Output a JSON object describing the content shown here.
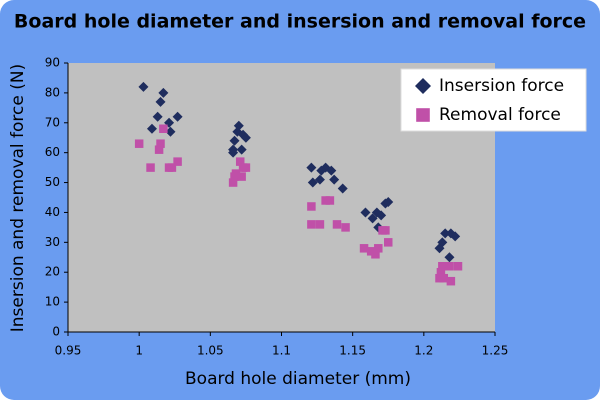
{
  "chart_data": {
    "type": "scatter",
    "title": "Board hole diameter and insersion and removal force",
    "x_label": "Board hole diameter (mm)",
    "y_label": "Insersion and removal force (N)",
    "xlim": [
      0.95,
      1.25
    ],
    "xticks": [
      0.95,
      1,
      1.05,
      1.1,
      1.15,
      1.2,
      1.25
    ],
    "ylim": [
      0,
      90
    ],
    "yticks": [
      0,
      10,
      20,
      30,
      40,
      50,
      60,
      70,
      80,
      90
    ],
    "grid": false,
    "legend": "upper right",
    "series": [
      {
        "name": "Insersion force",
        "color": "#1f2d5e",
        "marker": "diamond",
        "x": [
          1.003,
          1.017,
          1.015,
          1.013,
          1.027,
          1.021,
          1.009,
          1.022,
          1.07,
          1.069,
          1.073,
          1.075,
          1.067,
          1.066,
          1.072,
          1.066,
          1.121,
          1.131,
          1.135,
          1.128,
          1.122,
          1.127,
          1.137,
          1.143,
          1.159,
          1.167,
          1.164,
          1.17,
          1.173,
          1.175,
          1.168,
          1.215,
          1.219,
          1.222,
          1.213,
          1.211,
          1.218
        ],
        "values": [
          82,
          80,
          77,
          72,
          72,
          70,
          68,
          67,
          69,
          67,
          66,
          65,
          64,
          61,
          61,
          60,
          55,
          55,
          54,
          54,
          50,
          51,
          51,
          48,
          40,
          40,
          38,
          39,
          43,
          43.5,
          35,
          33,
          33,
          32,
          30,
          28,
          25
        ]
      },
      {
        "name": "Removal force",
        "color": "#c050a8",
        "marker": "square",
        "x": [
          1.0,
          1.015,
          1.014,
          1.017,
          1.008,
          1.027,
          1.021,
          1.023,
          1.071,
          1.073,
          1.075,
          1.068,
          1.067,
          1.066,
          1.072,
          1.121,
          1.131,
          1.134,
          1.121,
          1.127,
          1.139,
          1.145,
          1.158,
          1.163,
          1.168,
          1.171,
          1.173,
          1.175,
          1.166,
          1.213,
          1.218,
          1.224,
          1.212,
          1.211,
          1.214,
          1.219
        ],
        "values": [
          63,
          63,
          61,
          68,
          55,
          57,
          55,
          55,
          57,
          55,
          55,
          53,
          52,
          50,
          52,
          42,
          44,
          44,
          36,
          36,
          36,
          35,
          28,
          27,
          28,
          34,
          34,
          30,
          26,
          22,
          22,
          22,
          20,
          18,
          18,
          17
        ]
      }
    ]
  }
}
